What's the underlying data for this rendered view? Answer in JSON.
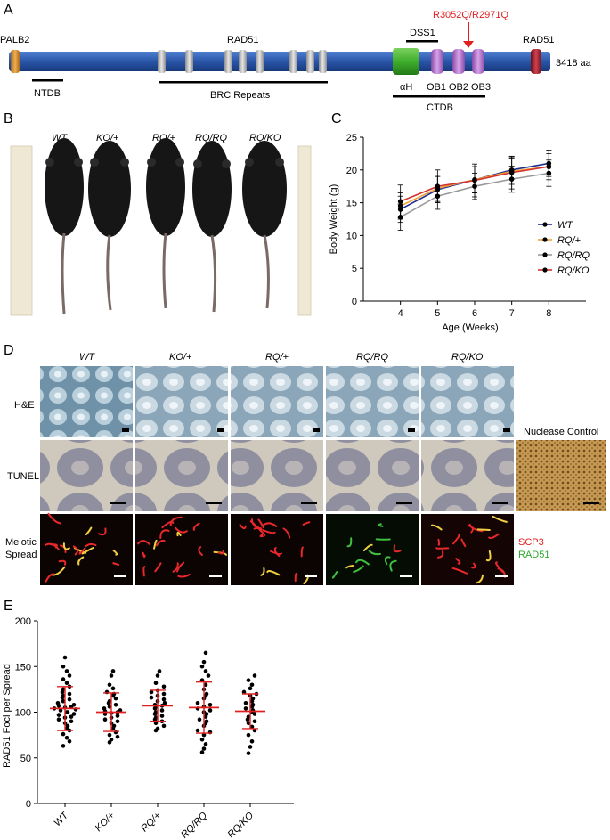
{
  "panels": {
    "a": "A",
    "b": "B",
    "c": "C",
    "d": "D",
    "e": "E"
  },
  "panel_a": {
    "domains": {
      "palb2": "PALB2",
      "rad51": "RAD51",
      "dss1": "DSS1",
      "rad51_c": "RAD51"
    },
    "mutation": "R3052Q/R2971Q",
    "length": "3418 aa",
    "ntdb": "NTDB",
    "brc": "BRC Repeats",
    "ah": "αH",
    "ob1": "OB1",
    "ob2": "OB2",
    "ob3": "OB3",
    "ctdb": "CTDB",
    "colors": {
      "backbone": "#2a55a8",
      "palb2": "#c98a32",
      "brc": "#a8a8a8",
      "ah": "#3fae2c",
      "ob": "#b473c8",
      "rad51c": "#9c1f2b",
      "arrow": "#e02020"
    }
  },
  "panel_b": {
    "genotypes": [
      "WT",
      "KO/+",
      "RQ/+",
      "RQ/RQ",
      "RQ/KO"
    ]
  },
  "panel_d": {
    "genotypes": [
      "WT",
      "KO/+",
      "RQ/+",
      "RQ/RQ",
      "RQ/KO"
    ],
    "rows": [
      "H&E",
      "TUNEL",
      "Meiotic\nSpread"
    ],
    "nuclease_control": "Nuclease Control",
    "scp3": "SCP3",
    "rad51": "RAD51"
  },
  "chart_data": [
    {
      "type": "line",
      "panel": "C",
      "xlabel": "Age (Weeks)",
      "ylabel": "Body Weight (g)",
      "x": [
        4,
        5,
        6,
        7,
        8
      ],
      "xlim": [
        3,
        9
      ],
      "ylim": [
        0,
        25
      ],
      "yticks": [
        0,
        5,
        10,
        15,
        20,
        25
      ],
      "legend_position": "right",
      "series": [
        {
          "name": "WT",
          "color": "#1f2e8f",
          "values": [
            14.0,
            17.0,
            18.5,
            20.0,
            21.0
          ],
          "error": [
            2.0,
            2.0,
            2.0,
            2.0,
            2.0
          ]
        },
        {
          "name": "RQ/+",
          "color": "#f2a33a",
          "values": [
            14.5,
            17.2,
            18.5,
            19.8,
            20.5
          ],
          "error": [
            2.0,
            2.0,
            2.0,
            2.0,
            2.0
          ]
        },
        {
          "name": "RQ/RQ",
          "color": "#999999",
          "values": [
            12.8,
            16.0,
            17.5,
            18.6,
            19.5
          ],
          "error": [
            2.0,
            2.0,
            2.0,
            2.0,
            2.0
          ]
        },
        {
          "name": "RQ/KO",
          "color": "#d2352f",
          "values": [
            15.2,
            17.5,
            18.4,
            19.6,
            20.5
          ],
          "error": [
            2.5,
            2.5,
            2.5,
            2.5,
            2.5
          ]
        }
      ]
    },
    {
      "type": "scatter",
      "panel": "E",
      "ylabel": "RAD51 Foci per Spread",
      "categories": [
        "WT",
        "KO/+",
        "RQ/+",
        "RQ/RQ",
        "RQ/KO"
      ],
      "ylim": [
        0,
        200
      ],
      "yticks": [
        0,
        50,
        100,
        150,
        200
      ],
      "mean": [
        104,
        100,
        107,
        105,
        101
      ],
      "sd": [
        24,
        21,
        17,
        28,
        19
      ],
      "points": [
        [
          63,
          68,
          72,
          76,
          80,
          82,
          85,
          88,
          90,
          92,
          94,
          95,
          97,
          98,
          100,
          100,
          102,
          103,
          104,
          105,
          106,
          107,
          108,
          110,
          112,
          114,
          116,
          118,
          120,
          122,
          125,
          128,
          132,
          136,
          140,
          145,
          150,
          160
        ],
        [
          67,
          70,
          73,
          75,
          78,
          82,
          85,
          88,
          90,
          92,
          94,
          96,
          98,
          99,
          100,
          101,
          102,
          104,
          106,
          108,
          110,
          112,
          115,
          118,
          120,
          122,
          126,
          130,
          140,
          145
        ],
        [
          80,
          82,
          85,
          88,
          90,
          92,
          94,
          96,
          98,
          100,
          102,
          104,
          106,
          107,
          108,
          110,
          112,
          114,
          116,
          118,
          120,
          122,
          124,
          128,
          132,
          140,
          145
        ],
        [
          56,
          60,
          65,
          70,
          75,
          78,
          80,
          85,
          88,
          90,
          92,
          95,
          98,
          100,
          102,
          104,
          106,
          108,
          110,
          115,
          118,
          120,
          125,
          130,
          135,
          140,
          145,
          150,
          155,
          165
        ],
        [
          55,
          62,
          68,
          75,
          80,
          84,
          88,
          90,
          92,
          95,
          98,
          100,
          102,
          104,
          106,
          108,
          110,
          112,
          115,
          118,
          120,
          122,
          126,
          130,
          135,
          140
        ]
      ]
    }
  ]
}
